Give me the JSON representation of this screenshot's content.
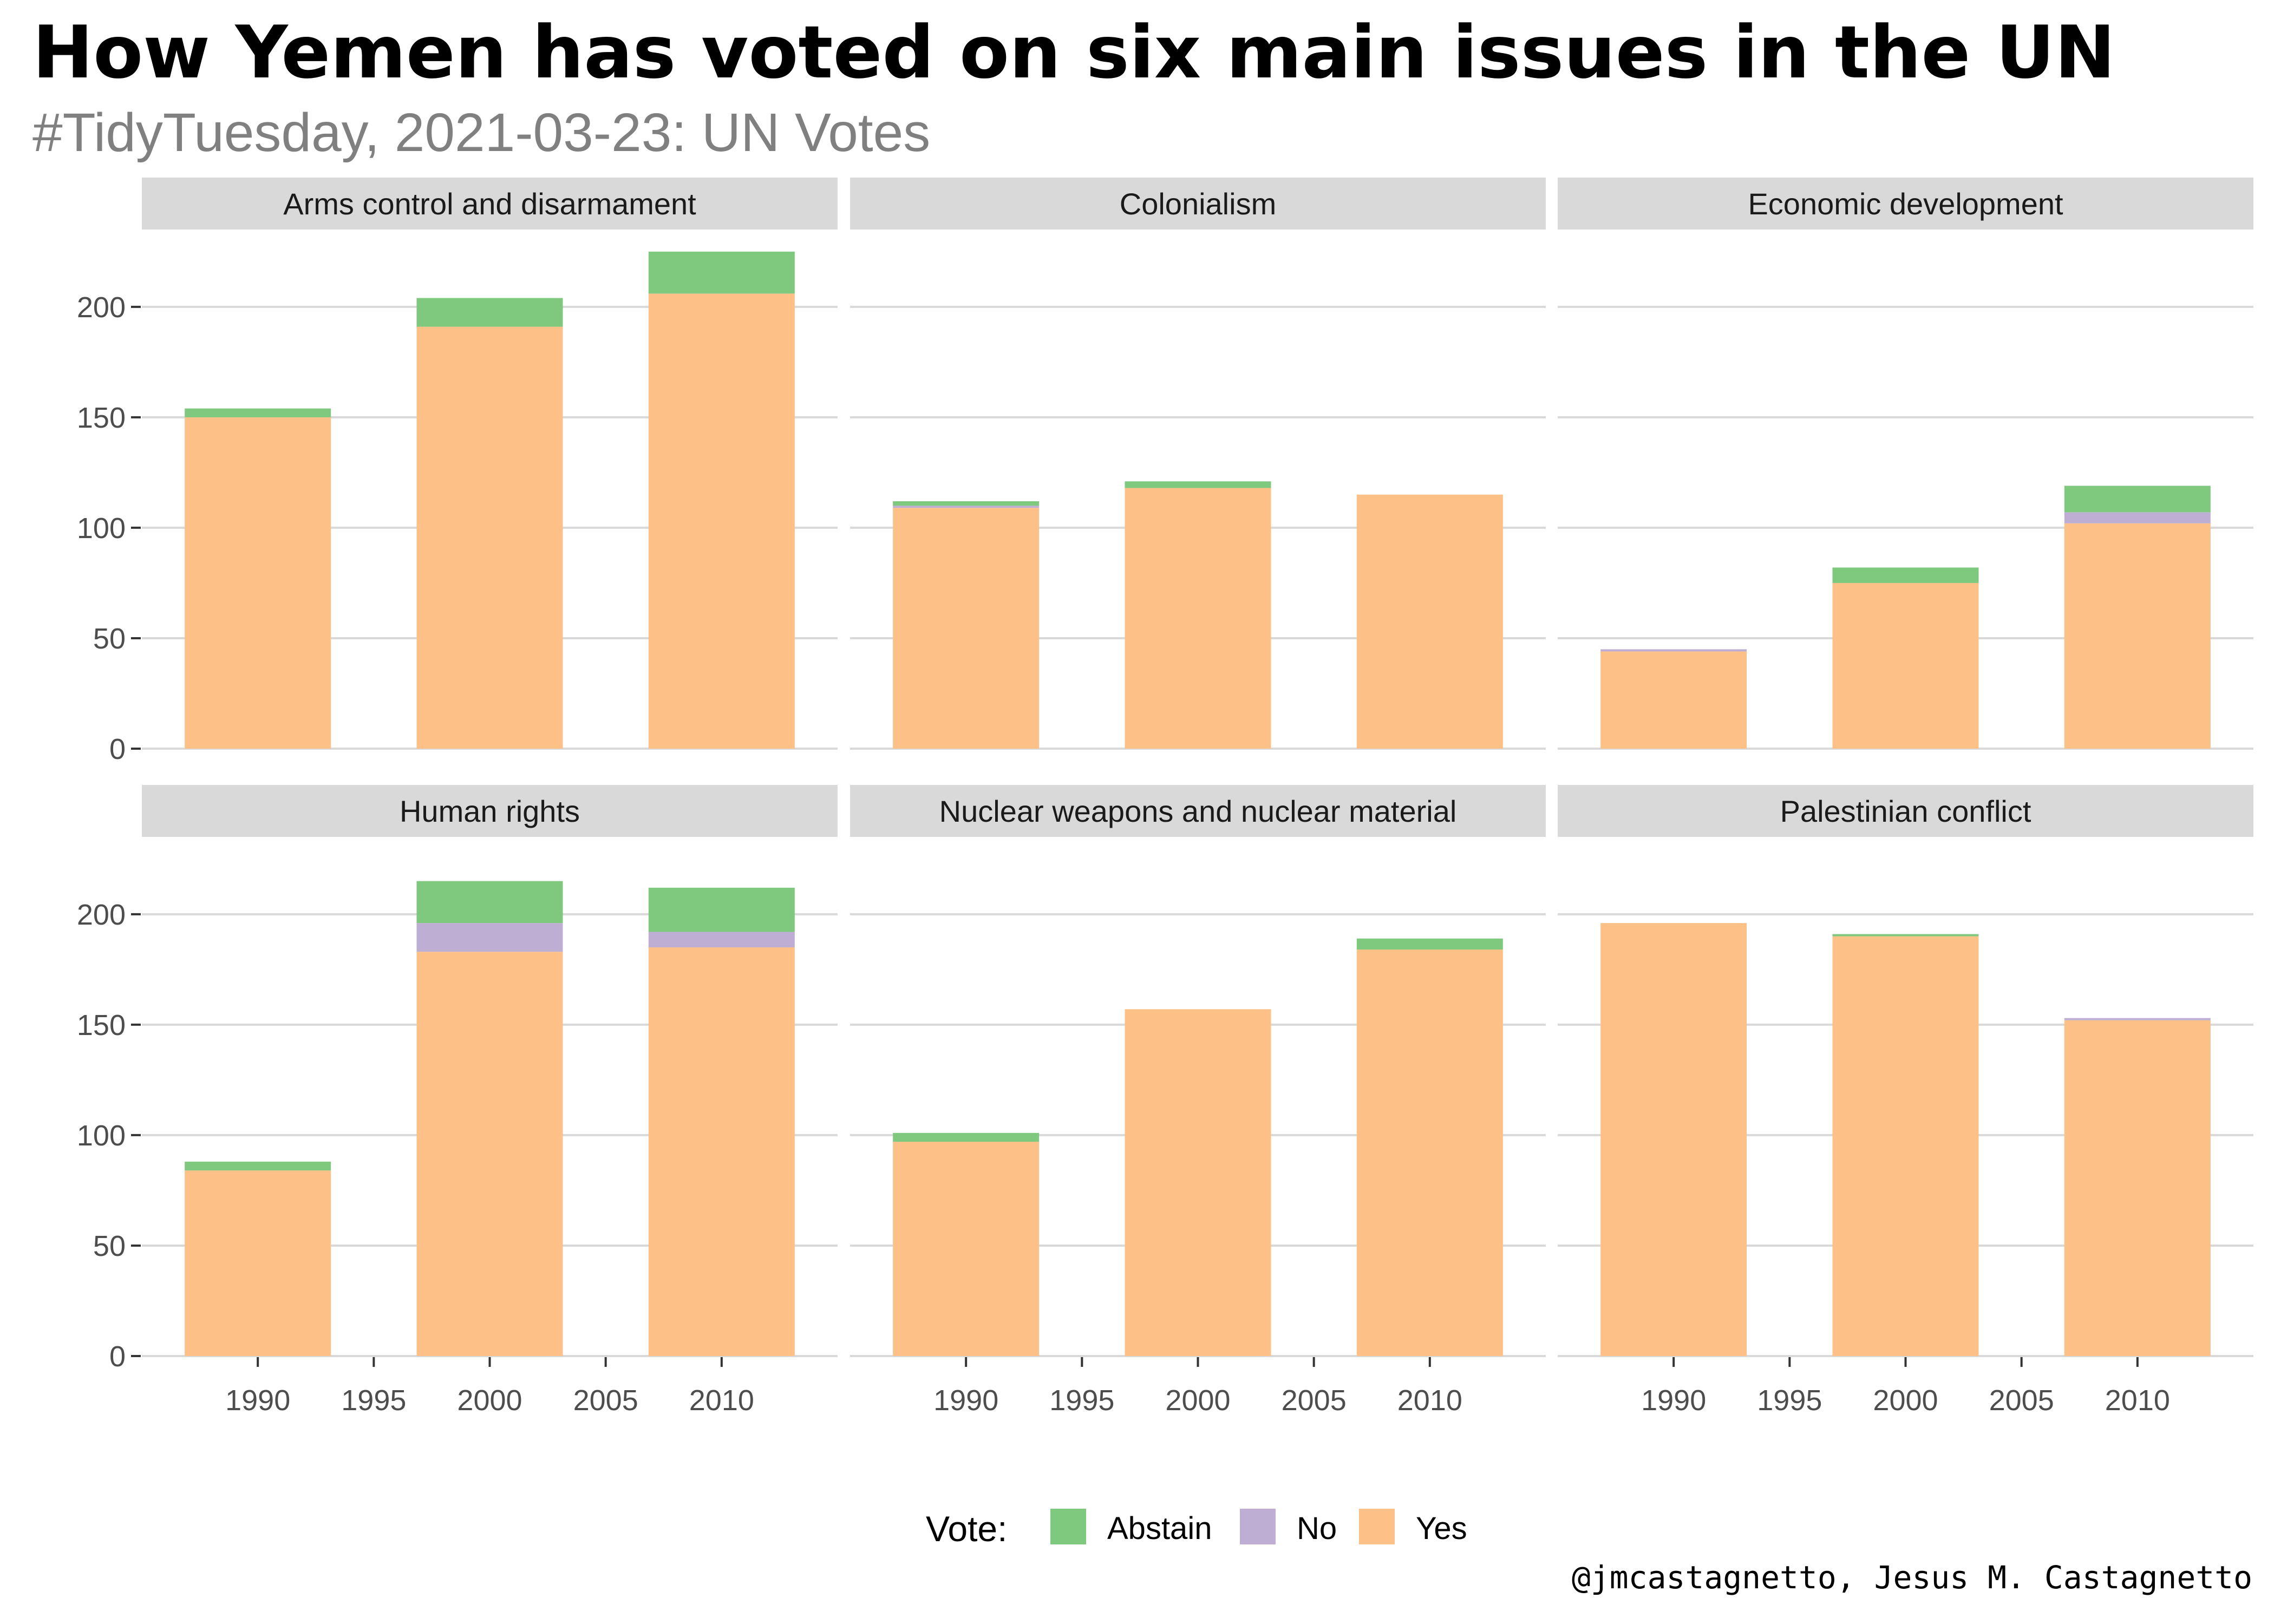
{
  "title": "How Yemen has voted on six main issues in the UN",
  "subtitle": "#TidyTuesday, 2021-03-23: UN Votes",
  "caption": "@jmcastagnetto, Jesus M. Castagnetto",
  "colors": {
    "Abstain": "#7fc97f",
    "No": "#beaed4",
    "Yes": "#fdc086",
    "strip": "#d9d9d9",
    "grid": "#d9d9d9",
    "axis_text": "#4d4d4d"
  },
  "chart_data": {
    "type": "bar",
    "stacked": true,
    "x": [
      1990,
      2000,
      2010
    ],
    "x_ticks": [
      1990,
      1995,
      2000,
      2005,
      2010
    ],
    "xlim": [
      1985,
      2015
    ],
    "y_ticks": [
      0,
      50,
      100,
      150,
      200
    ],
    "ylim": [
      0,
      235
    ],
    "grid": true,
    "legend": {
      "title": "Vote:",
      "position": "bottom",
      "entries": [
        "Abstain",
        "No",
        "Yes"
      ]
    },
    "stack_order": [
      "Yes",
      "No",
      "Abstain"
    ],
    "facets": [
      {
        "name": "Arms control and disarmament",
        "series": [
          {
            "name": "Yes",
            "values": [
              150,
              191,
              206
            ]
          },
          {
            "name": "No",
            "values": [
              0,
              0,
              0
            ]
          },
          {
            "name": "Abstain",
            "values": [
              4,
              13,
              19
            ]
          }
        ]
      },
      {
        "name": "Colonialism",
        "series": [
          {
            "name": "Yes",
            "values": [
              109,
              118,
              115
            ]
          },
          {
            "name": "No",
            "values": [
              1,
              0,
              0
            ]
          },
          {
            "name": "Abstain",
            "values": [
              2,
              3,
              0
            ]
          }
        ]
      },
      {
        "name": "Economic development",
        "series": [
          {
            "name": "Yes",
            "values": [
              44,
              75,
              102
            ]
          },
          {
            "name": "No",
            "values": [
              1,
              0,
              5
            ]
          },
          {
            "name": "Abstain",
            "values": [
              0,
              7,
              12
            ]
          }
        ]
      },
      {
        "name": "Human rights",
        "series": [
          {
            "name": "Yes",
            "values": [
              84,
              183,
              185
            ]
          },
          {
            "name": "No",
            "values": [
              0,
              13,
              7
            ]
          },
          {
            "name": "Abstain",
            "values": [
              4,
              19,
              20
            ]
          }
        ]
      },
      {
        "name": "Nuclear weapons and nuclear material",
        "series": [
          {
            "name": "Yes",
            "values": [
              97,
              157,
              184
            ]
          },
          {
            "name": "No",
            "values": [
              0,
              0,
              0
            ]
          },
          {
            "name": "Abstain",
            "values": [
              4,
              0,
              5
            ]
          }
        ]
      },
      {
        "name": "Palestinian conflict",
        "series": [
          {
            "name": "Yes",
            "values": [
              196,
              190,
              152
            ]
          },
          {
            "name": "No",
            "values": [
              0,
              0,
              1
            ]
          },
          {
            "name": "Abstain",
            "values": [
              0,
              1,
              0
            ]
          }
        ]
      }
    ]
  }
}
